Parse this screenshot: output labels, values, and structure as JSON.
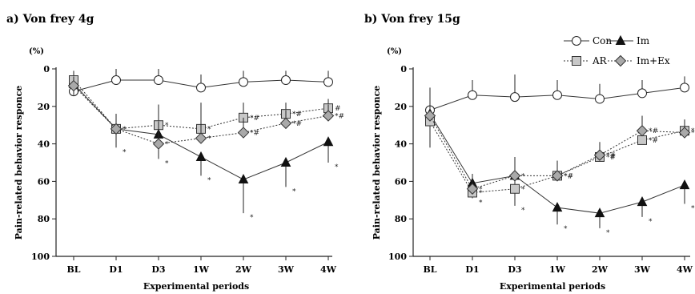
{
  "chart_data": [
    {
      "type": "line",
      "title": "a) Von frey 4g",
      "unit_label": "(%)",
      "ylabel": "Pain-related behavior responce",
      "xlabel": "Experimental periods",
      "categories": [
        "BL",
        "D1",
        "D3",
        "1W",
        "2W",
        "3W",
        "4W"
      ],
      "ylim": [
        0,
        100
      ],
      "y_inverted": true,
      "yticks": [
        "0",
        "20",
        "40",
        "60",
        "80",
        "100"
      ],
      "legend": "none",
      "series": [
        {
          "name": "Con",
          "marker": "circle",
          "values": [
            12,
            6,
            6,
            10,
            7,
            6,
            7
          ],
          "errors": [
            6,
            6,
            6,
            7,
            6,
            5,
            6
          ],
          "annotations": [
            "",
            "",
            "",
            "",
            "",
            "",
            ""
          ]
        },
        {
          "name": "Im",
          "marker": "triangle",
          "values": [
            8,
            32,
            35,
            47,
            59,
            50,
            39
          ],
          "errors": [
            6,
            10,
            13,
            10,
            18,
            13,
            11
          ],
          "annotations": [
            "",
            "*",
            "*",
            "*",
            "*",
            "*",
            "*"
          ]
        },
        {
          "name": "AR",
          "marker": "square",
          "values": [
            6,
            32,
            30,
            32,
            26,
            24,
            21
          ],
          "errors": [
            5,
            8,
            11,
            14,
            8,
            6,
            5
          ],
          "annotations": [
            "",
            "*",
            "*",
            "*",
            "*#",
            "*#",
            "#"
          ]
        },
        {
          "name": "Im+Ex",
          "marker": "diamond",
          "values": [
            9,
            32,
            40,
            37,
            34,
            29,
            25
          ],
          "errors": [
            5,
            8,
            12,
            10,
            8,
            7,
            6
          ],
          "annotations": [
            "",
            "*",
            "*",
            "*",
            "*#",
            "*#",
            "*#"
          ]
        }
      ]
    },
    {
      "type": "line",
      "title": "b) Von frey 15g",
      "unit_label": "(%)",
      "ylabel": "Pain-related behavior responce",
      "xlabel": "Experimental periods",
      "categories": [
        "BL",
        "D1",
        "D3",
        "1W",
        "2W",
        "3W",
        "4W"
      ],
      "ylim": [
        0,
        100
      ],
      "y_inverted": true,
      "yticks": [
        "0",
        "20",
        "40",
        "60",
        "80",
        "100"
      ],
      "legend": "top-right",
      "series": [
        {
          "name": "Con",
          "marker": "circle",
          "values": [
            22,
            14,
            15,
            14,
            16,
            13,
            10
          ],
          "errors": [
            12,
            8,
            12,
            8,
            8,
            7,
            6
          ],
          "annotations": [
            "",
            "",
            "",
            "",
            "",
            "",
            ""
          ]
        },
        {
          "name": "Im",
          "marker": "triangle",
          "values": [
            24,
            61,
            57,
            74,
            77,
            71,
            62
          ],
          "errors": [
            18,
            8,
            16,
            9,
            8,
            8,
            10
          ],
          "annotations": [
            "",
            "*",
            "*",
            "*",
            "*",
            "*",
            "*"
          ]
        },
        {
          "name": "AR",
          "marker": "square",
          "values": [
            28,
            66,
            64,
            57,
            47,
            38,
            33
          ],
          "errors": [
            14,
            8,
            11,
            8,
            7,
            6,
            6
          ],
          "annotations": [
            "",
            "*",
            "*",
            "*#",
            "*#",
            "*#",
            "*#"
          ]
        },
        {
          "name": "Im+Ex",
          "marker": "diamond",
          "values": [
            25,
            64,
            57,
            57,
            46,
            33,
            34
          ],
          "errors": [
            10,
            8,
            10,
            8,
            7,
            8,
            6
          ],
          "annotations": [
            "",
            "*",
            "*",
            "*#",
            "*#",
            "*#",
            "*#"
          ]
        }
      ]
    }
  ]
}
